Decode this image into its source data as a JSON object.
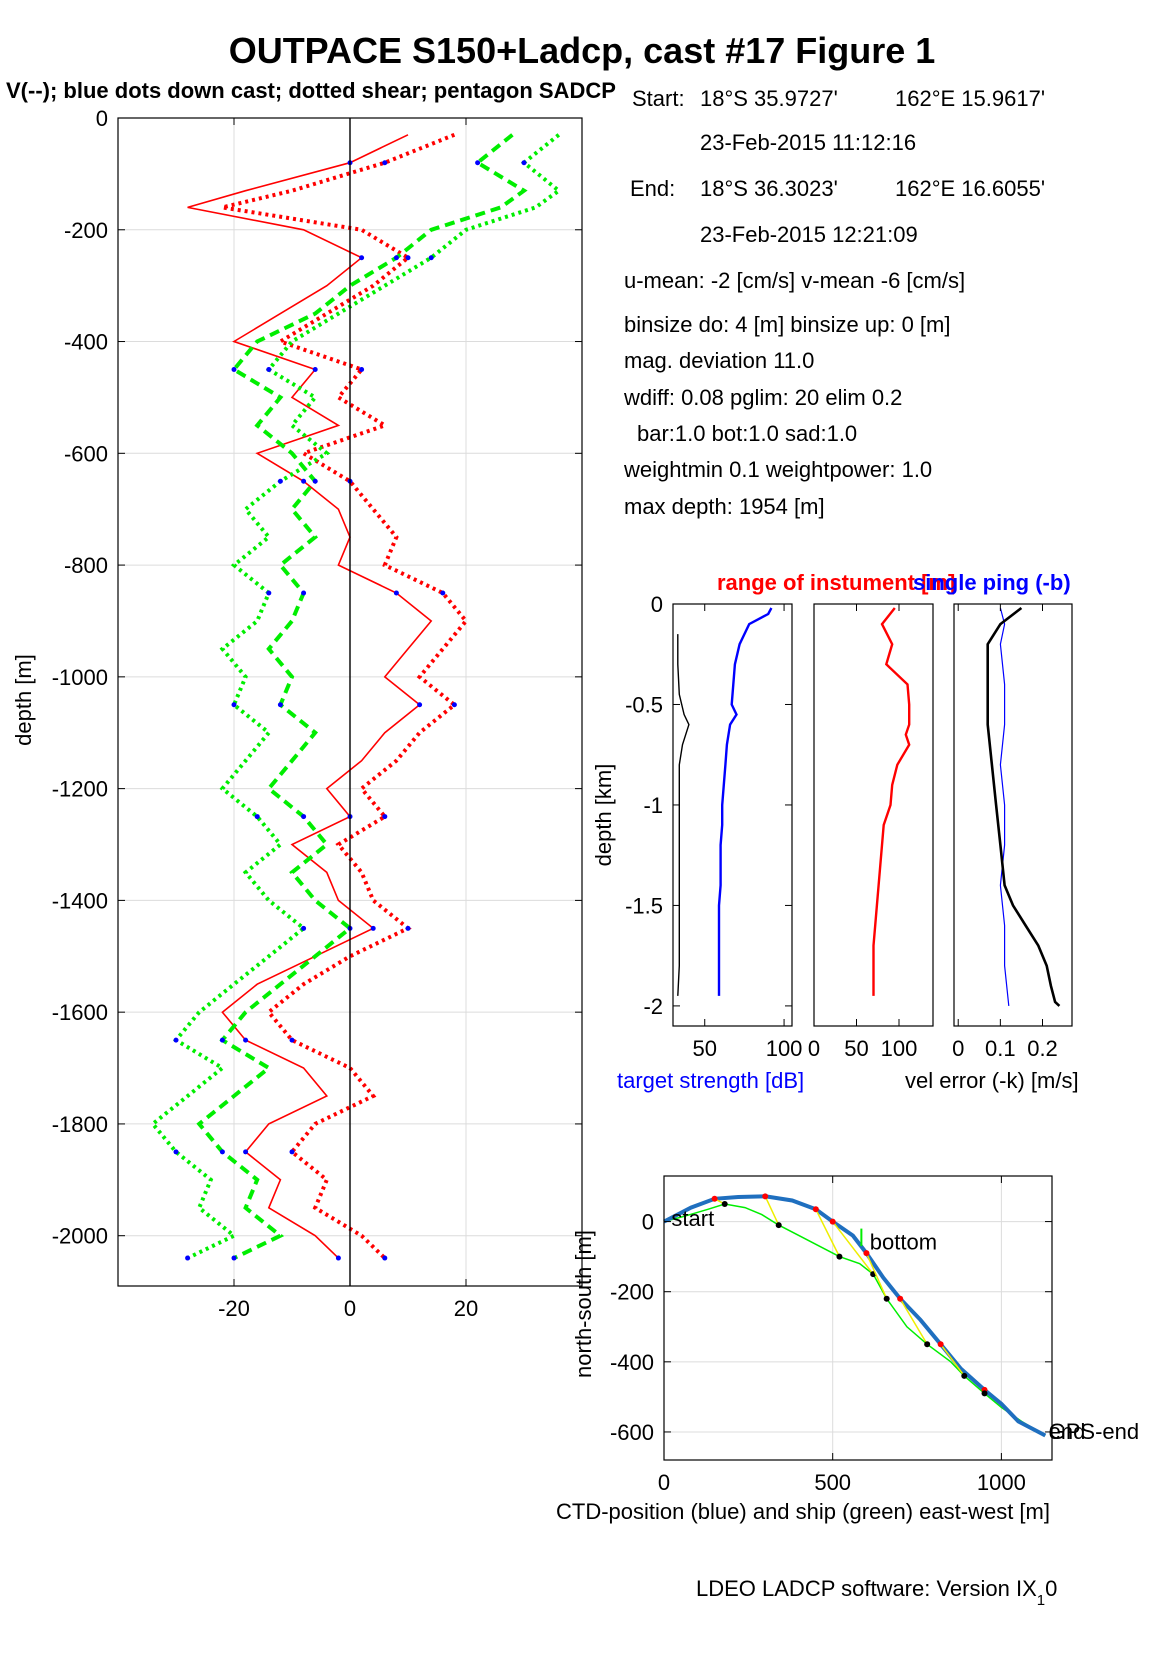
{
  "title": "OUTPACE S150+Ladcp, cast #17  Figure 1",
  "subtitle": "V(--); blue dots down cast; dotted shear; pentagon SADCP",
  "info": {
    "start_label": "Start:",
    "start_lat": "18°S 35.9727'",
    "start_lon": "162°E 15.9617'",
    "start_time": "23-Feb-2015 11:12:16",
    "end_label": "End:",
    "end_lat": "18°S 36.3023'",
    "end_lon": "162°E 16.6055'",
    "end_time": "23-Feb-2015 12:21:09",
    "means": "u-mean:  -2 [cm/s]    v-mean  -6 [cm/s]",
    "binsize": "binsize do: 4 [m]  binsize up:  0 [m]",
    "magdev": "mag. deviation 11.0",
    "wdiff": "wdiff: 0.08  pglim: 20  elim 0.2",
    "bar": "bar:1.0 bot:1.0 sad:1.0",
    "weight": "weightmin 0.1  weightpower: 1.0",
    "maxdepth": "max depth: 1954 [m]"
  },
  "footer": {
    "software": "LDEO LADCP software: Version IX",
    "sub": "1",
    "tail": "0"
  },
  "colors": {
    "red": "#ff0000",
    "green": "#00ee00",
    "blue": "#0000ff",
    "black": "#000000",
    "yellow": "#eeee00",
    "ctd": "#1f6fbf"
  },
  "chart_data": [
    {
      "type": "line",
      "ylabel": "depth [m]",
      "xlim": [
        -40,
        40
      ],
      "ylim": [
        -2090,
        0
      ],
      "xticks": [
        -20,
        0,
        20
      ],
      "yticks": [
        0,
        -200,
        -400,
        -600,
        -800,
        -1000,
        -1200,
        -1400,
        -1600,
        -1800,
        -2000
      ],
      "grid": true,
      "series": [
        {
          "color": "red",
          "style": "solid",
          "depth": [
            -30,
            -80,
            -130,
            -160,
            -200,
            -250,
            -300,
            -350,
            -400,
            -450,
            -500,
            -550,
            -600,
            -650,
            -700,
            -750,
            -800,
            -850,
            -900,
            -950,
            -1000,
            -1050,
            -1100,
            -1150,
            -1200,
            -1250,
            -1300,
            -1350,
            -1400,
            -1450,
            -1500,
            -1550,
            -1600,
            -1650,
            -1700,
            -1750,
            -1800,
            -1850,
            -1900,
            -1950,
            -2000,
            -2040
          ],
          "values": [
            10,
            0,
            -18,
            -28,
            -8,
            2,
            -4,
            -12,
            -20,
            -6,
            -10,
            -2,
            -16,
            -8,
            -2,
            0,
            -2,
            8,
            14,
            10,
            6,
            12,
            6,
            2,
            -4,
            0,
            -10,
            -4,
            -2,
            4,
            -6,
            -16,
            -22,
            -18,
            -8,
            -4,
            -14,
            -18,
            -12,
            -14,
            -6,
            -2
          ]
        },
        {
          "color": "red",
          "style": "dotted",
          "depth": [
            -30,
            -80,
            -130,
            -160,
            -200,
            -250,
            -300,
            -350,
            -400,
            -450,
            -500,
            -550,
            -600,
            -650,
            -700,
            -750,
            -800,
            -850,
            -900,
            -950,
            -1000,
            -1050,
            -1100,
            -1150,
            -1200,
            -1250,
            -1300,
            -1350,
            -1400,
            -1450,
            -1500,
            -1550,
            -1600,
            -1650,
            -1700,
            -1750,
            -1800,
            -1850,
            -1900,
            -1950,
            -2000,
            -2040
          ],
          "values": [
            18,
            6,
            -10,
            -22,
            2,
            10,
            4,
            -4,
            -12,
            2,
            -2,
            6,
            -8,
            0,
            4,
            8,
            6,
            16,
            20,
            16,
            12,
            18,
            12,
            8,
            2,
            6,
            -2,
            2,
            4,
            10,
            0,
            -8,
            -14,
            -10,
            0,
            4,
            -6,
            -10,
            -4,
            -6,
            2,
            6
          ]
        },
        {
          "color": "green",
          "style": "dotted",
          "depth": [
            -30,
            -80,
            -130,
            -160,
            -200,
            -250,
            -300,
            -350,
            -400,
            -450,
            -500,
            -550,
            -600,
            -650,
            -700,
            -750,
            -800,
            -850,
            -900,
            -950,
            -1000,
            -1050,
            -1100,
            -1150,
            -1200,
            -1250,
            -1300,
            -1350,
            -1400,
            -1450,
            -1500,
            -1550,
            -1600,
            -1650,
            -1700,
            -1750,
            -1800,
            -1850,
            -1900,
            -1950,
            -2000,
            -2040
          ],
          "values": [
            36,
            30,
            36,
            32,
            20,
            14,
            6,
            -2,
            -10,
            -14,
            -6,
            -10,
            -4,
            -12,
            -18,
            -14,
            -20,
            -14,
            -16,
            -22,
            -18,
            -20,
            -14,
            -18,
            -22,
            -16,
            -12,
            -18,
            -14,
            -8,
            -14,
            -20,
            -26,
            -30,
            -22,
            -28,
            -34,
            -30,
            -24,
            -26,
            -20,
            -28
          ]
        },
        {
          "color": "green",
          "style": "dashed",
          "depth": [
            -30,
            -80,
            -130,
            -160,
            -200,
            -250,
            -300,
            -350,
            -400,
            -450,
            -500,
            -550,
            -600,
            -650,
            -700,
            -750,
            -800,
            -850,
            -900,
            -950,
            -1000,
            -1050,
            -1100,
            -1150,
            -1200,
            -1250,
            -1300,
            -1350,
            -1400,
            -1450,
            -1500,
            -1550,
            -1600,
            -1650,
            -1700,
            -1750,
            -1800,
            -1850,
            -1900,
            -1950,
            -2000,
            -2040
          ],
          "values": [
            28,
            22,
            30,
            26,
            14,
            8,
            0,
            -6,
            -16,
            -20,
            -12,
            -16,
            -10,
            -6,
            -10,
            -6,
            -12,
            -8,
            -10,
            -14,
            -10,
            -12,
            -6,
            -10,
            -14,
            -8,
            -4,
            -10,
            -6,
            0,
            -6,
            -12,
            -18,
            -22,
            -14,
            -20,
            -26,
            -22,
            -16,
            -18,
            -12,
            -20
          ]
        }
      ]
    },
    {
      "type": "line",
      "title": "",
      "xlabel": "target strength [dB]",
      "ylabel": "depth [km]",
      "xlim": [
        30,
        105
      ],
      "ylim": [
        -2.1,
        0
      ],
      "xticks": [
        50,
        100
      ],
      "yticks": [
        0,
        -0.5,
        -1,
        -1.5,
        -2
      ],
      "series": [
        {
          "color": "blue",
          "depth": [
            -0.02,
            -0.05,
            -0.1,
            -0.2,
            -0.3,
            -0.4,
            -0.5,
            -0.55,
            -0.6,
            -0.7,
            -0.8,
            -0.9,
            -1.0,
            -1.1,
            -1.2,
            -1.3,
            -1.4,
            -1.5,
            -1.6,
            -1.7,
            -1.8,
            -1.9,
            -1.95
          ],
          "values": [
            92,
            90,
            78,
            72,
            69,
            68,
            67,
            70,
            66,
            64,
            63,
            62,
            61,
            61,
            60,
            60,
            60,
            59,
            59,
            59,
            59,
            59,
            59
          ]
        },
        {
          "color": "black",
          "depth": [
            -0.15,
            -0.3,
            -0.45,
            -0.55,
            -0.6,
            -0.7,
            -0.8,
            -1.0,
            -1.2,
            -1.4,
            -1.6,
            -1.8,
            -1.95
          ],
          "values": [
            33,
            33,
            34,
            37,
            40,
            36,
            34,
            34,
            34,
            34,
            34,
            34,
            33
          ]
        }
      ]
    },
    {
      "type": "line",
      "title": "range of instument [m]",
      "xlim": [
        0,
        140
      ],
      "ylim": [
        -2.1,
        0
      ],
      "xticks": [
        0,
        50,
        100
      ],
      "series": [
        {
          "color": "red",
          "depth": [
            -0.02,
            -0.1,
            -0.2,
            -0.3,
            -0.4,
            -0.5,
            -0.6,
            -0.65,
            -0.7,
            -0.8,
            -0.9,
            -1.0,
            -1.1,
            -1.2,
            -1.3,
            -1.4,
            -1.5,
            -1.6,
            -1.7,
            -1.8,
            -1.9,
            -1.95
          ],
          "values": [
            95,
            80,
            92,
            85,
            110,
            112,
            112,
            108,
            112,
            98,
            92,
            90,
            82,
            80,
            78,
            76,
            74,
            72,
            70,
            70,
            70,
            70
          ]
        }
      ]
    },
    {
      "type": "line",
      "title": "single ping (-b)",
      "xlabel": "vel error (-k) [m/s]",
      "xlim": [
        -0.01,
        0.27
      ],
      "ylim": [
        -2.1,
        0
      ],
      "xticks": [
        0,
        0.1,
        0.2
      ],
      "series": [
        {
          "color": "blue",
          "depth": [
            -0.02,
            -0.1,
            -0.2,
            -0.4,
            -0.6,
            -0.8,
            -1.0,
            -1.2,
            -1.4,
            -1.6,
            -1.8,
            -2.0
          ],
          "values": [
            0.1,
            0.11,
            0.1,
            0.11,
            0.11,
            0.1,
            0.11,
            0.11,
            0.1,
            0.11,
            0.11,
            0.12
          ]
        },
        {
          "color": "black",
          "depth": [
            -0.02,
            -0.1,
            -0.2,
            -0.4,
            -0.6,
            -0.8,
            -1.0,
            -1.2,
            -1.4,
            -1.5,
            -1.6,
            -1.7,
            -1.8,
            -1.9,
            -1.98,
            -2.0
          ],
          "values": [
            0.15,
            0.1,
            0.07,
            0.07,
            0.07,
            0.08,
            0.09,
            0.1,
            0.11,
            0.13,
            0.16,
            0.19,
            0.21,
            0.22,
            0.23,
            0.24
          ]
        }
      ]
    },
    {
      "type": "line",
      "xlabel": "CTD-position (blue) and ship (green) east-west [m]",
      "ylabel": "north-south [m]",
      "xlim": [
        0,
        1150
      ],
      "ylim": [
        -680,
        130
      ],
      "xticks": [
        0,
        500,
        1000
      ],
      "yticks": [
        0,
        -200,
        -400,
        -600
      ],
      "grid": true,
      "labels": {
        "start": "start",
        "bottom": "bottom",
        "end": "end",
        "gps": "GPS-end"
      },
      "ctd": {
        "x": [
          0,
          80,
          150,
          220,
          300,
          380,
          450,
          500,
          560,
          600,
          650,
          700,
          760,
          820,
          880,
          950,
          1000,
          1050,
          1130
        ],
        "y": [
          0,
          40,
          65,
          70,
          72,
          60,
          35,
          0,
          -40,
          -90,
          -160,
          -220,
          -280,
          -350,
          -420,
          -480,
          -520,
          -570,
          -610
        ]
      },
      "ship": {
        "x": [
          0,
          60,
          130,
          180,
          240,
          290,
          340,
          400,
          460,
          520,
          580,
          620,
          660,
          720,
          780,
          850,
          890,
          950,
          1000,
          1060,
          1130
        ],
        "y": [
          0,
          15,
          35,
          50,
          40,
          20,
          -10,
          -40,
          -70,
          -100,
          -120,
          -150,
          -220,
          -300,
          -350,
          -400,
          -440,
          -490,
          -530,
          -570,
          -610
        ]
      }
    }
  ]
}
